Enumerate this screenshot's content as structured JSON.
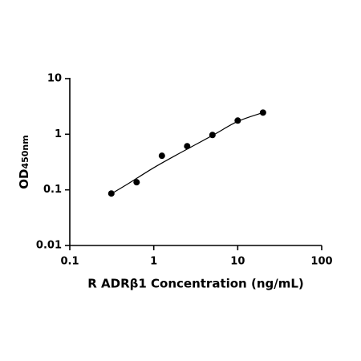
{
  "chart_data": {
    "type": "scatter",
    "x_label": "R ADRβ1 Concentration (ng/mL)",
    "y_label": "OD",
    "y_label_sub": "450nm",
    "xscale": "log",
    "yscale": "log",
    "xlim": [
      0.1,
      100
    ],
    "xticks": [
      0.1,
      1,
      10,
      100
    ],
    "ylim": [
      0.01,
      10
    ],
    "yticks": [
      0.01,
      0.1,
      1,
      10
    ],
    "series": [
      {
        "kind": "points",
        "color": "#000000",
        "x": [
          0.3125,
          0.625,
          1.25,
          2.5,
          5,
          10,
          20
        ],
        "values": [
          0.086,
          0.137,
          0.41,
          0.61,
          0.97,
          1.76,
          2.45
        ]
      },
      {
        "kind": "curve",
        "color": "#000000",
        "x": [
          0.3125,
          0.5,
          1,
          2,
          5,
          10,
          20
        ],
        "values": [
          0.085,
          0.13,
          0.25,
          0.45,
          0.95,
          1.7,
          2.45
        ]
      }
    ]
  }
}
